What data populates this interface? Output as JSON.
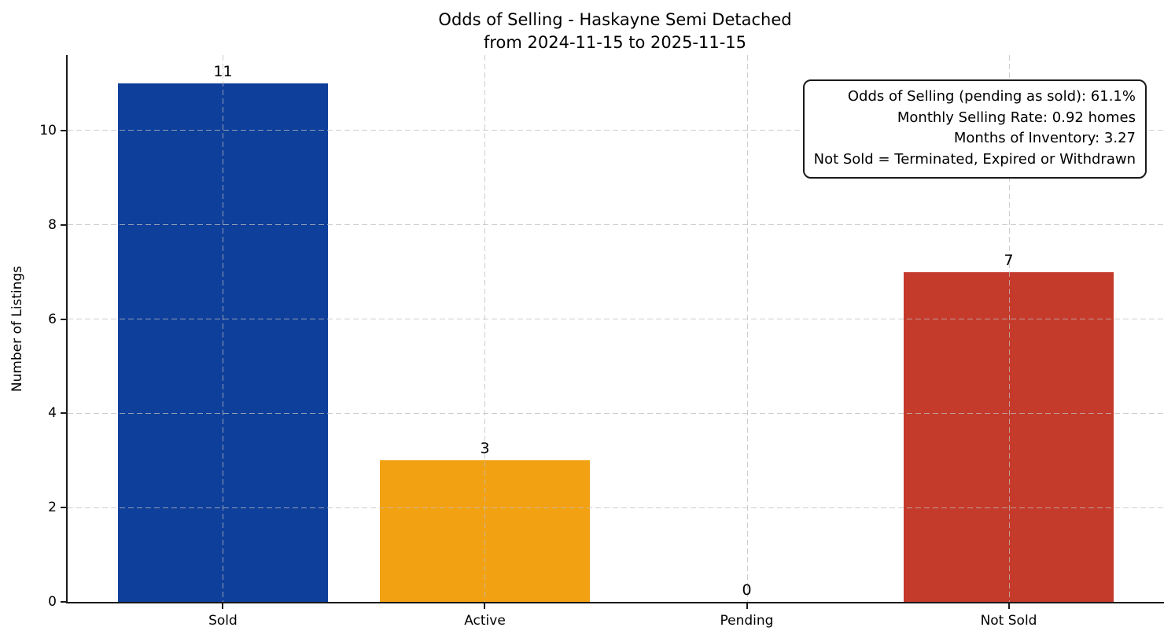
{
  "title": {
    "line1": "Odds of Selling - Haskayne Semi Detached",
    "line2": "from 2024-11-15 to 2025-11-15"
  },
  "chart_data": {
    "type": "bar",
    "categories": [
      "Sold",
      "Active",
      "Pending",
      "Not Sold"
    ],
    "values": [
      11,
      3,
      0,
      7
    ],
    "value_labels": [
      "11",
      "3",
      "0",
      "7"
    ],
    "bar_colors": [
      "#0e3f9a",
      "#f2a113",
      null,
      "#c43a2b"
    ],
    "title": "Odds of Selling - Haskayne Semi Detached from 2024-11-15 to 2025-11-15",
    "xlabel": "",
    "ylabel": "Number of Listings",
    "yticks": [
      0,
      2,
      4,
      6,
      8,
      10
    ],
    "ylim": [
      0,
      11.6
    ],
    "grid": {
      "style": "dashed",
      "axes": "both",
      "color": "#d9d9d9"
    },
    "legend": "none"
  },
  "annotation_box": {
    "lines": [
      "Odds of Selling (pending as sold): 61.1%",
      "Monthly Selling Rate: 0.92 homes",
      "Months of Inventory: 3.27",
      "Not Sold = Terminated, Expired or Withdrawn"
    ]
  },
  "colors": {
    "spine": "#1a1a1a",
    "text": "#000000",
    "background": "#ffffff"
  }
}
